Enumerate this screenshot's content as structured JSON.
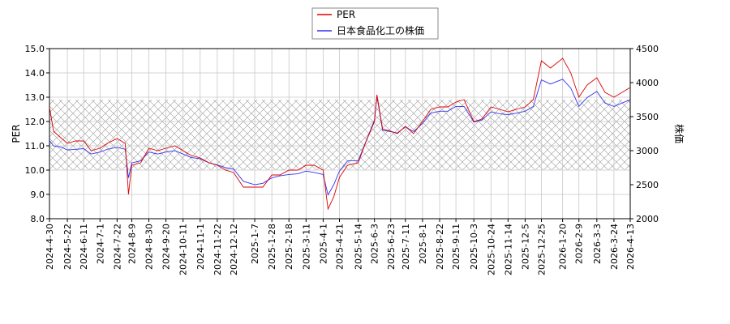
{
  "chart_data": {
    "type": "line",
    "x_dates": [
      "2024-4-30",
      "2024-5-22",
      "2024-6-11",
      "2024-7-1",
      "2024-7-22",
      "2024-8-9",
      "2024-8-30",
      "2024-9-20",
      "2024-10-11",
      "2024-11-1",
      "2024-11-22",
      "2024-12-12",
      "2025-1-7",
      "2025-1-28",
      "2025-2-18",
      "2025-3-11",
      "2025-4-1",
      "2025-4-21",
      "2025-5-14",
      "2025-6-3",
      "2025-6-23",
      "2025-7-11",
      "2025-8-1",
      "2025-8-22",
      "2025-9-11",
      "2025-10-3",
      "2025-10-24",
      "2025-11-14",
      "2025-12-5",
      "2025-12-25",
      "2026-1-20",
      "2026-2-9",
      "2026-3-3",
      "2026-3-24",
      "2026-4-13"
    ],
    "y_left": {
      "label": "PER",
      "range": [
        8.0,
        15.0
      ],
      "ticks": [
        "8.0",
        "9.0",
        "10.0",
        "11.0",
        "12.0",
        "13.0",
        "14.0",
        "15.0"
      ]
    },
    "y_right": {
      "label": "株価",
      "range": [
        2000,
        4500
      ],
      "ticks": [
        "2000",
        "2500",
        "3000",
        "3500",
        "4000",
        "4500"
      ]
    },
    "band": {
      "from": 10.0,
      "to": 12.9,
      "pattern": "crosshatch"
    },
    "grid": true,
    "legend": {
      "placement": "top-center",
      "entries": [
        {
          "name": "PER",
          "color": "#dd0000"
        },
        {
          "name": "日本食品化工の株価",
          "color": "#3333ee"
        }
      ]
    },
    "series": [
      {
        "name": "PER",
        "axis": "left",
        "color": "#dd0000",
        "x": [
          "2024-4-30",
          "2024-5-5",
          "2024-5-15",
          "2024-5-22",
          "2024-6-1",
          "2024-6-11",
          "2024-6-20",
          "2024-7-1",
          "2024-7-10",
          "2024-7-22",
          "2024-8-1",
          "2024-8-5",
          "2024-8-9",
          "2024-8-20",
          "2024-8-30",
          "2024-9-10",
          "2024-9-20",
          "2024-10-1",
          "2024-10-11",
          "2024-10-21",
          "2024-11-1",
          "2024-11-12",
          "2024-11-22",
          "2024-12-2",
          "2024-12-12",
          "2024-12-24",
          "2025-1-7",
          "2025-1-17",
          "2025-1-28",
          "2025-2-7",
          "2025-2-18",
          "2025-3-1",
          "2025-3-11",
          "2025-3-21",
          "2025-4-1",
          "2025-4-7",
          "2025-4-14",
          "2025-4-21",
          "2025-5-1",
          "2025-5-14",
          "2025-5-24",
          "2025-6-3",
          "2025-6-6",
          "2025-6-13",
          "2025-6-23",
          "2025-7-1",
          "2025-7-11",
          "2025-7-21",
          "2025-8-1",
          "2025-8-11",
          "2025-8-22",
          "2025-9-1",
          "2025-9-11",
          "2025-9-21",
          "2025-10-3",
          "2025-10-13",
          "2025-10-24",
          "2025-11-4",
          "2025-11-14",
          "2025-11-24",
          "2025-12-5",
          "2025-12-15",
          "2025-12-25",
          "2026-1-5",
          "2026-1-20",
          "2026-1-30",
          "2026-2-9",
          "2026-2-19",
          "2026-3-3",
          "2026-3-13",
          "2026-3-24",
          "2026-4-3",
          "2026-4-13",
          "2026-4-22"
        ],
        "y": [
          12.6,
          11.6,
          11.3,
          11.1,
          11.2,
          11.2,
          10.8,
          10.9,
          11.1,
          11.3,
          11.1,
          9.0,
          10.2,
          10.3,
          10.9,
          10.8,
          10.9,
          11.0,
          10.8,
          10.6,
          10.5,
          10.3,
          10.2,
          10.0,
          9.9,
          9.3,
          9.3,
          9.3,
          9.8,
          9.8,
          10.0,
          10.0,
          10.2,
          10.2,
          10.0,
          8.4,
          8.9,
          9.7,
          10.2,
          10.3,
          11.2,
          12.0,
          13.1,
          11.7,
          11.6,
          11.5,
          11.8,
          11.5,
          12.0,
          12.5,
          12.6,
          12.6,
          12.8,
          12.9,
          12.0,
          12.1,
          12.6,
          12.5,
          12.4,
          12.5,
          12.6,
          12.9,
          14.5,
          14.2,
          14.6,
          14.0,
          13.0,
          13.5,
          13.8,
          13.2,
          13.0,
          13.2,
          13.4,
          13.3
        ]
      },
      {
        "name": "日本食品化工の株価",
        "axis": "right",
        "color": "#3333ee",
        "x": [
          "2024-4-30",
          "2024-5-5",
          "2024-5-15",
          "2024-5-22",
          "2024-6-1",
          "2024-6-11",
          "2024-6-20",
          "2024-7-1",
          "2024-7-10",
          "2024-7-22",
          "2024-8-1",
          "2024-8-5",
          "2024-8-9",
          "2024-8-20",
          "2024-8-30",
          "2024-9-10",
          "2024-9-20",
          "2024-10-1",
          "2024-10-11",
          "2024-10-21",
          "2024-11-1",
          "2024-11-12",
          "2024-11-22",
          "2024-12-2",
          "2024-12-12",
          "2024-12-24",
          "2025-1-7",
          "2025-1-17",
          "2025-1-28",
          "2025-2-7",
          "2025-2-18",
          "2025-3-1",
          "2025-3-11",
          "2025-3-21",
          "2025-4-1",
          "2025-4-7",
          "2025-4-14",
          "2025-4-21",
          "2025-5-1",
          "2025-5-14",
          "2025-5-24",
          "2025-6-3",
          "2025-6-6",
          "2025-6-13",
          "2025-6-23",
          "2025-7-1",
          "2025-7-11",
          "2025-7-21",
          "2025-8-1",
          "2025-8-11",
          "2025-8-22",
          "2025-9-1",
          "2025-9-11",
          "2025-9-21",
          "2025-10-3",
          "2025-10-13",
          "2025-10-24",
          "2025-11-4",
          "2025-11-14",
          "2025-11-24",
          "2025-12-5",
          "2025-12-15",
          "2025-12-25",
          "2026-1-5",
          "2026-1-20",
          "2026-1-30",
          "2026-2-9",
          "2026-2-19",
          "2026-3-3",
          "2026-3-13",
          "2026-3-24",
          "2026-4-3",
          "2026-4-13",
          "2026-4-22"
        ],
        "y": [
          3150,
          3070,
          3050,
          3010,
          3020,
          3030,
          2950,
          2980,
          3020,
          3050,
          3020,
          2600,
          2820,
          2850,
          2980,
          2950,
          2980,
          3000,
          2950,
          2900,
          2880,
          2820,
          2790,
          2750,
          2730,
          2550,
          2500,
          2520,
          2600,
          2630,
          2650,
          2660,
          2700,
          2680,
          2650,
          2350,
          2500,
          2700,
          2850,
          2850,
          3150,
          3450,
          3800,
          3300,
          3280,
          3260,
          3350,
          3280,
          3400,
          3550,
          3580,
          3580,
          3650,
          3650,
          3420,
          3450,
          3570,
          3540,
          3530,
          3550,
          3580,
          3650,
          4040,
          3980,
          4050,
          3920,
          3650,
          3780,
          3870,
          3700,
          3650,
          3700,
          3750,
          3730
        ]
      }
    ]
  }
}
